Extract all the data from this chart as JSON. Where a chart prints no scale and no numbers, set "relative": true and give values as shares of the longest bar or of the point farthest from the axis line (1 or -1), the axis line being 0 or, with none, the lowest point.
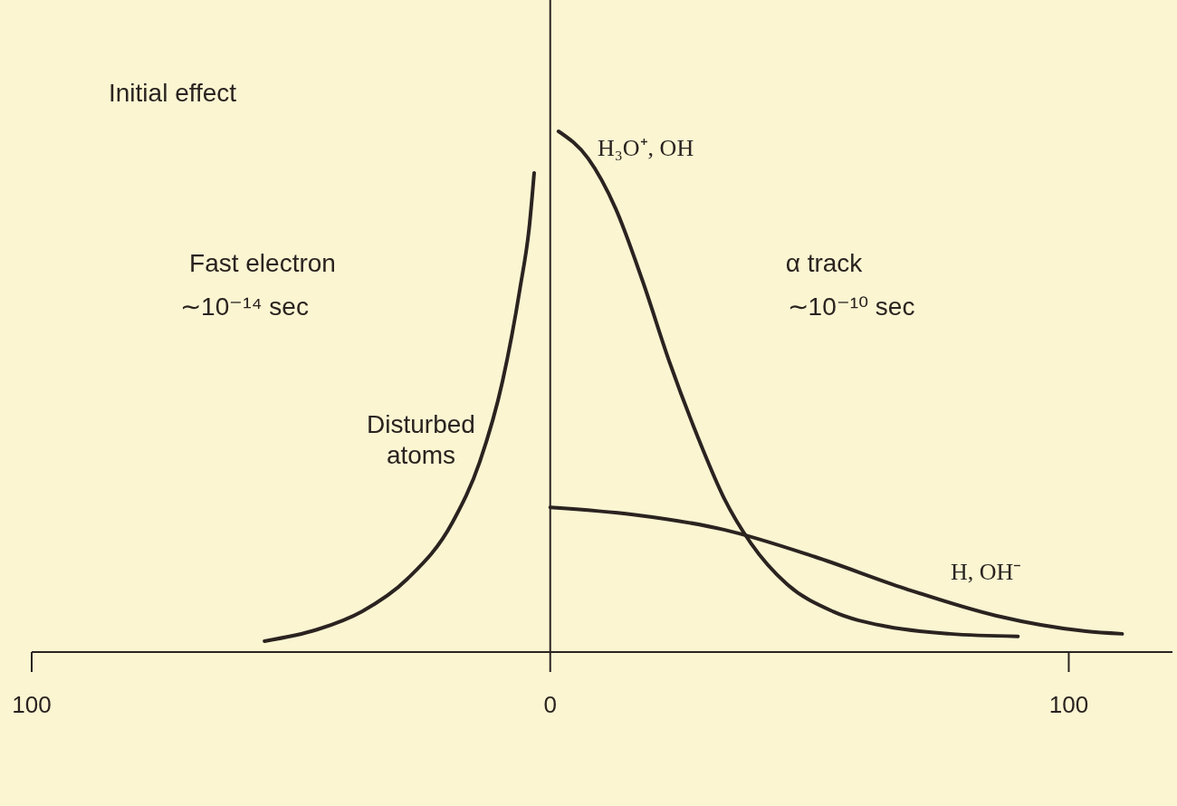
{
  "chart_data": {
    "type": "line",
    "relative": true,
    "grid": false,
    "marker": "none",
    "line_style": "solid",
    "xlim": [
      -100,
      120
    ],
    "xticks": [
      {
        "value": -100,
        "label": "100"
      },
      0,
      100
    ],
    "ref_lines": [
      {
        "axis": "x",
        "value": 0,
        "color": "#2a2320"
      }
    ],
    "annotations": [
      "Initial effect",
      "Fast electron",
      "∼10⁻¹⁴ sec",
      "Disturbed atoms",
      "α track",
      "∼10⁻¹⁰ sec"
    ],
    "series": [
      {
        "color": "#2a2320",
        "x": [
          -55.1,
          -45,
          -36.3,
          -27.6,
          -18.8,
          -13.6,
          -9.2,
          -5.8,
          -4.0,
          -3.1
        ],
        "values": [
          0.021,
          0.043,
          0.078,
          0.14,
          0.25,
          0.365,
          0.52,
          0.7,
          0.82,
          0.92
        ]
      },
      {
        "name": "H₃O⁺, OH",
        "color": "#2a2320",
        "x": [
          1.6,
          7.3,
          12.6,
          17.8,
          23.0,
          28.3,
          33.5,
          38.7,
          45.7,
          54.5,
          64.9,
          77.1,
          90.2
        ],
        "values": [
          1.0,
          0.948,
          0.852,
          0.713,
          0.557,
          0.417,
          0.296,
          0.209,
          0.13,
          0.078,
          0.049,
          0.035,
          0.03
        ]
      },
      {
        "name": "H, OH⁻",
        "color": "#2a2320",
        "x": [
          0,
          16,
          33.5,
          51,
          68.4,
          85.9,
          103.3,
          110.3
        ],
        "values": [
          0.278,
          0.264,
          0.235,
          0.183,
          0.122,
          0.07,
          0.04,
          0.035
        ]
      }
    ]
  }
}
